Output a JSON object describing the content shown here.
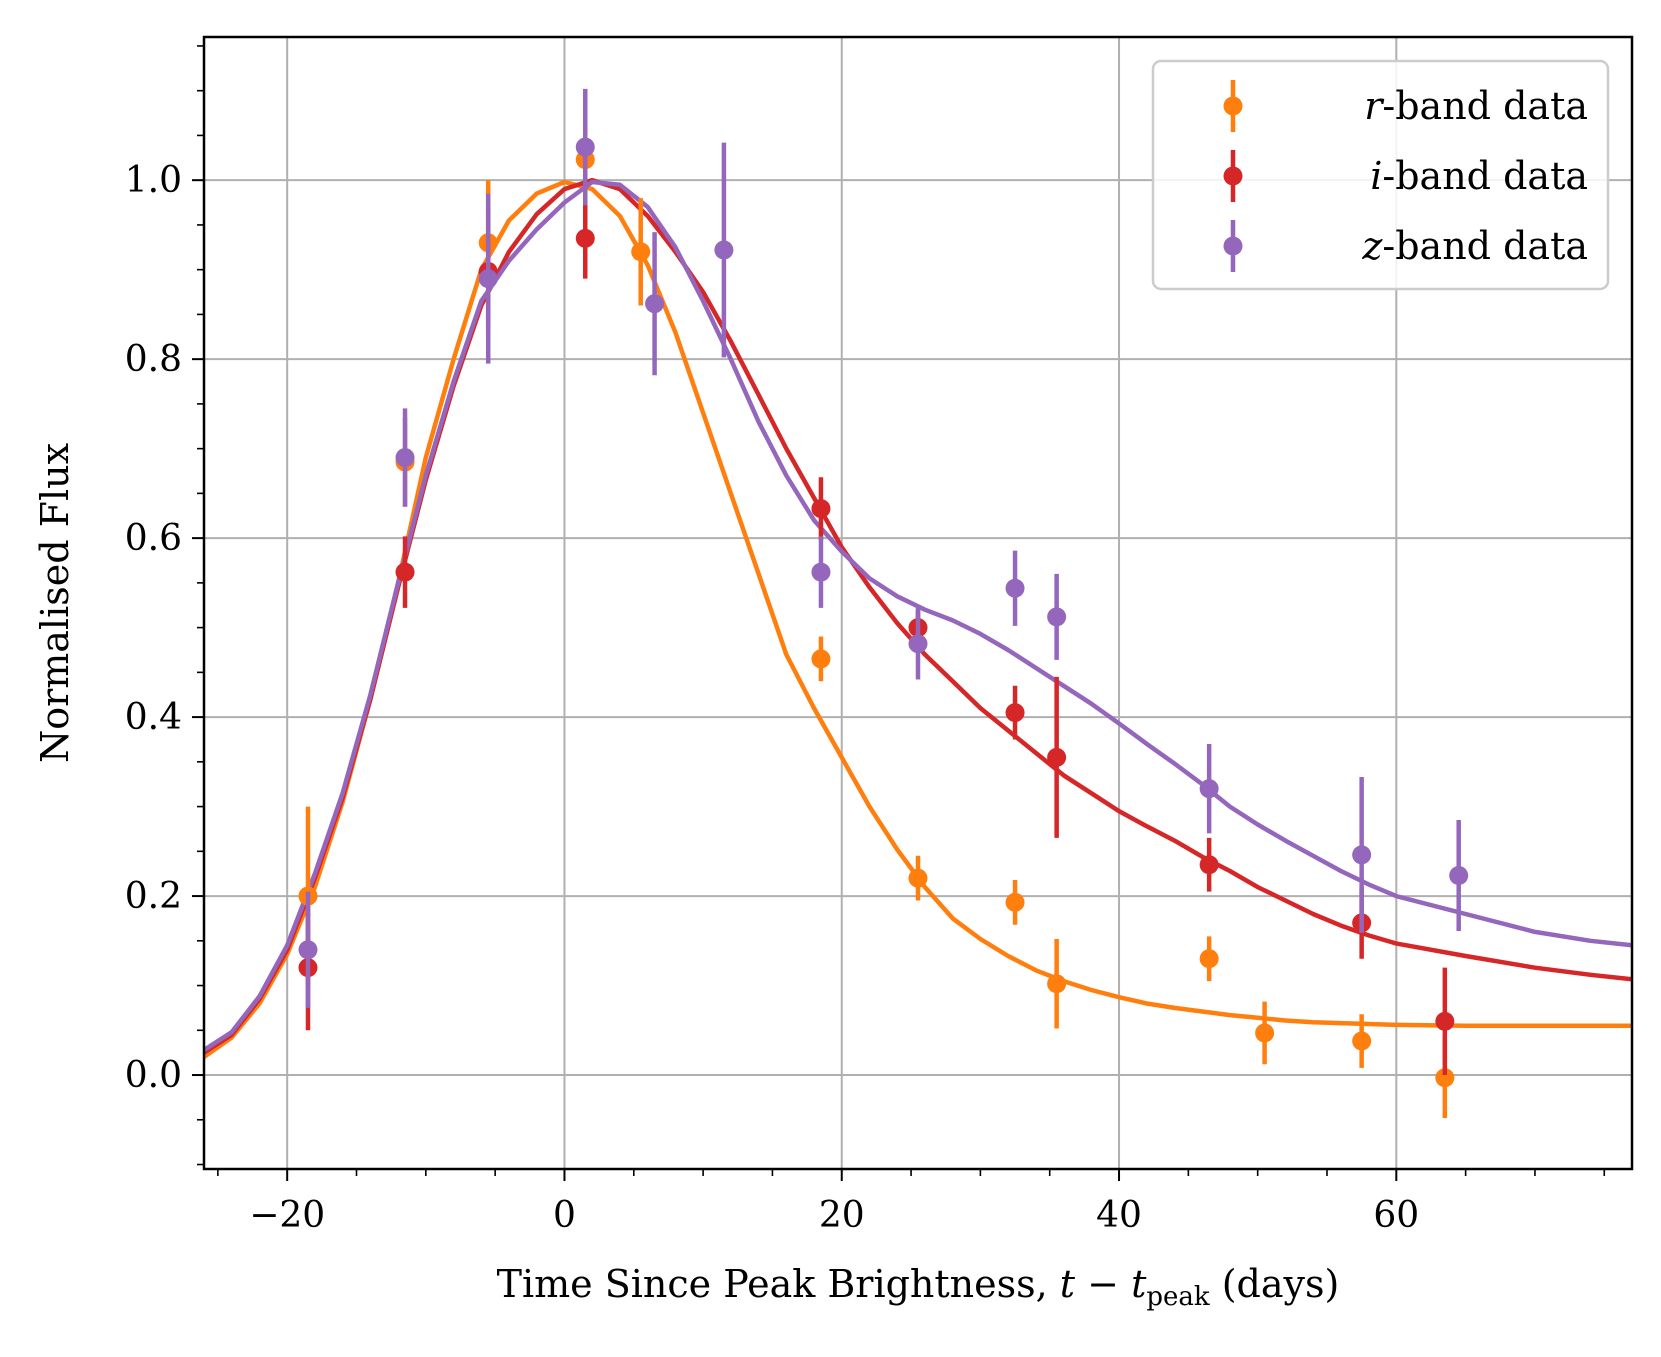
{
  "chart_data": {
    "type": "line",
    "title": "",
    "xlabel": {
      "prefix": "Time Since Peak Brightness, ",
      "var": "t",
      "minus": " − ",
      "var2": "t",
      "sub": "peak",
      "suffix": " (days)"
    },
    "ylabel": "Normalised Flux",
    "xlim": [
      -26,
      77
    ],
    "ylim": [
      -0.105,
      1.16
    ],
    "xticks": [
      -20,
      0,
      20,
      40,
      60
    ],
    "xtick_labels": [
      "−20",
      "0",
      "20",
      "40",
      "60"
    ],
    "yticks": [
      0.0,
      0.2,
      0.4,
      0.6,
      0.8,
      1.0
    ],
    "ytick_labels": [
      "0.0",
      "0.2",
      "0.4",
      "0.6",
      "0.8",
      "1.0"
    ],
    "x_minor_step": 5,
    "y_minor_step": 0.05,
    "grid": true,
    "legend_position": "top-right",
    "series": [
      {
        "name": "r-band data",
        "legend": {
          "italic": "r",
          "rest": "-band data"
        },
        "color": "#ff7f0e",
        "points": [
          {
            "x": -18.5,
            "y": 0.2,
            "err": 0.1
          },
          {
            "x": -11.5,
            "y": 0.685,
            "err": 0.05
          },
          {
            "x": -5.5,
            "y": 0.93,
            "err": 0.07
          },
          {
            "x": 1.5,
            "y": 1.023,
            "err": 0.04
          },
          {
            "x": 5.5,
            "y": 0.92,
            "err": 0.06
          },
          {
            "x": 18.5,
            "y": 0.465,
            "err": 0.025
          },
          {
            "x": 25.5,
            "y": 0.22,
            "err": 0.025
          },
          {
            "x": 32.5,
            "y": 0.193,
            "err": 0.025
          },
          {
            "x": 35.5,
            "y": 0.102,
            "err": 0.05
          },
          {
            "x": 46.5,
            "y": 0.13,
            "err": 0.025
          },
          {
            "x": 50.5,
            "y": 0.047,
            "err": 0.035
          },
          {
            "x": 57.5,
            "y": 0.038,
            "err": 0.03
          },
          {
            "x": 63.5,
            "y": -0.003,
            "err": 0.045
          }
        ],
        "model": [
          [
            -26,
            0.02
          ],
          [
            -24,
            0.042
          ],
          [
            -22,
            0.08
          ],
          [
            -20,
            0.135
          ],
          [
            -18,
            0.21
          ],
          [
            -16,
            0.305
          ],
          [
            -14,
            0.42
          ],
          [
            -12,
            0.55
          ],
          [
            -10,
            0.69
          ],
          [
            -8,
            0.8
          ],
          [
            -6,
            0.9
          ],
          [
            -4,
            0.955
          ],
          [
            -2,
            0.985
          ],
          [
            0,
            0.998
          ],
          [
            2,
            0.99
          ],
          [
            4,
            0.96
          ],
          [
            6,
            0.905
          ],
          [
            8,
            0.83
          ],
          [
            10,
            0.74
          ],
          [
            12,
            0.65
          ],
          [
            14,
            0.56
          ],
          [
            16,
            0.47
          ],
          [
            18,
            0.41
          ],
          [
            20,
            0.355
          ],
          [
            22,
            0.3
          ],
          [
            24,
            0.252
          ],
          [
            26,
            0.21
          ],
          [
            28,
            0.175
          ],
          [
            30,
            0.152
          ],
          [
            32,
            0.133
          ],
          [
            34,
            0.117
          ],
          [
            36,
            0.105
          ],
          [
            38,
            0.095
          ],
          [
            40,
            0.087
          ],
          [
            42,
            0.08
          ],
          [
            44,
            0.075
          ],
          [
            46,
            0.071
          ],
          [
            48,
            0.067
          ],
          [
            50,
            0.064
          ],
          [
            52,
            0.061
          ],
          [
            54,
            0.059
          ],
          [
            56,
            0.058
          ],
          [
            58,
            0.057
          ],
          [
            60,
            0.056
          ],
          [
            65,
            0.055
          ],
          [
            70,
            0.055
          ],
          [
            77,
            0.055
          ]
        ]
      },
      {
        "name": "i-band data",
        "legend": {
          "italic": "i",
          "rest": "-band data"
        },
        "color": "#d62728",
        "points": [
          {
            "x": -18.5,
            "y": 0.12,
            "err": 0.07
          },
          {
            "x": -11.5,
            "y": 0.562,
            "err": 0.04
          },
          {
            "x": -5.5,
            "y": 0.898,
            "err": 0.07
          },
          {
            "x": 1.5,
            "y": 0.935,
            "err": 0.045
          },
          {
            "x": 18.5,
            "y": 0.633,
            "err": 0.035
          },
          {
            "x": 25.5,
            "y": 0.5,
            "err": 0.02
          },
          {
            "x": 32.5,
            "y": 0.405,
            "err": 0.03
          },
          {
            "x": 35.5,
            "y": 0.355,
            "err": 0.09
          },
          {
            "x": 46.5,
            "y": 0.235,
            "err": 0.03
          },
          {
            "x": 57.5,
            "y": 0.17,
            "err": 0.04
          },
          {
            "x": 63.5,
            "y": 0.06,
            "err": 0.06
          }
        ],
        "model": [
          [
            -26,
            0.025
          ],
          [
            -24,
            0.045
          ],
          [
            -22,
            0.085
          ],
          [
            -20,
            0.14
          ],
          [
            -18,
            0.22
          ],
          [
            -16,
            0.31
          ],
          [
            -14,
            0.42
          ],
          [
            -12,
            0.545
          ],
          [
            -10,
            0.665
          ],
          [
            -8,
            0.77
          ],
          [
            -6,
            0.86
          ],
          [
            -4,
            0.92
          ],
          [
            -2,
            0.962
          ],
          [
            0,
            0.99
          ],
          [
            2,
            1.0
          ],
          [
            4,
            0.99
          ],
          [
            6,
            0.96
          ],
          [
            8,
            0.92
          ],
          [
            10,
            0.875
          ],
          [
            12,
            0.82
          ],
          [
            14,
            0.76
          ],
          [
            16,
            0.7
          ],
          [
            18,
            0.645
          ],
          [
            20,
            0.59
          ],
          [
            22,
            0.545
          ],
          [
            24,
            0.505
          ],
          [
            26,
            0.47
          ],
          [
            28,
            0.44
          ],
          [
            30,
            0.41
          ],
          [
            32,
            0.385
          ],
          [
            34,
            0.36
          ],
          [
            36,
            0.335
          ],
          [
            38,
            0.315
          ],
          [
            40,
            0.295
          ],
          [
            42,
            0.278
          ],
          [
            44,
            0.262
          ],
          [
            46,
            0.244
          ],
          [
            48,
            0.228
          ],
          [
            50,
            0.21
          ],
          [
            52,
            0.195
          ],
          [
            54,
            0.18
          ],
          [
            56,
            0.167
          ],
          [
            58,
            0.156
          ],
          [
            60,
            0.147
          ],
          [
            65,
            0.133
          ],
          [
            70,
            0.12
          ],
          [
            74,
            0.112
          ],
          [
            77,
            0.107
          ]
        ]
      },
      {
        "name": "z-band data",
        "legend": {
          "italic": "z",
          "rest": "-band data"
        },
        "color": "#9467bd",
        "points": [
          {
            "x": -18.5,
            "y": 0.14,
            "err": 0.065
          },
          {
            "x": -11.5,
            "y": 0.69,
            "err": 0.055
          },
          {
            "x": -5.5,
            "y": 0.89,
            "err": 0.095
          },
          {
            "x": 1.5,
            "y": 1.037,
            "err": 0.065
          },
          {
            "x": 6.5,
            "y": 0.862,
            "err": 0.08
          },
          {
            "x": 11.5,
            "y": 0.922,
            "err": 0.12
          },
          {
            "x": 18.5,
            "y": 0.562,
            "err": 0.04
          },
          {
            "x": 25.5,
            "y": 0.482,
            "err": 0.04
          },
          {
            "x": 32.5,
            "y": 0.544,
            "err": 0.042
          },
          {
            "x": 35.5,
            "y": 0.512,
            "err": 0.048
          },
          {
            "x": 46.5,
            "y": 0.32,
            "err": 0.05
          },
          {
            "x": 57.5,
            "y": 0.246,
            "err": 0.087
          },
          {
            "x": 64.5,
            "y": 0.223,
            "err": 0.062
          }
        ],
        "model": [
          [
            -26,
            0.028
          ],
          [
            -24,
            0.048
          ],
          [
            -22,
            0.088
          ],
          [
            -20,
            0.145
          ],
          [
            -18,
            0.225
          ],
          [
            -16,
            0.315
          ],
          [
            -14,
            0.425
          ],
          [
            -12,
            0.55
          ],
          [
            -10,
            0.67
          ],
          [
            -8,
            0.775
          ],
          [
            -6,
            0.865
          ],
          [
            -4,
            0.91
          ],
          [
            -2,
            0.945
          ],
          [
            0,
            0.975
          ],
          [
            2,
            0.998
          ],
          [
            4,
            0.995
          ],
          [
            6,
            0.97
          ],
          [
            8,
            0.925
          ],
          [
            10,
            0.865
          ],
          [
            12,
            0.8
          ],
          [
            14,
            0.73
          ],
          [
            16,
            0.67
          ],
          [
            18,
            0.62
          ],
          [
            20,
            0.585
          ],
          [
            22,
            0.555
          ],
          [
            24,
            0.535
          ],
          [
            26,
            0.52
          ],
          [
            28,
            0.508
          ],
          [
            30,
            0.493
          ],
          [
            32,
            0.475
          ],
          [
            34,
            0.455
          ],
          [
            36,
            0.435
          ],
          [
            38,
            0.415
          ],
          [
            40,
            0.393
          ],
          [
            42,
            0.37
          ],
          [
            44,
            0.348
          ],
          [
            46,
            0.325
          ],
          [
            48,
            0.3
          ],
          [
            50,
            0.28
          ],
          [
            52,
            0.262
          ],
          [
            54,
            0.245
          ],
          [
            56,
            0.228
          ],
          [
            58,
            0.213
          ],
          [
            60,
            0.2
          ],
          [
            65,
            0.18
          ],
          [
            70,
            0.16
          ],
          [
            74,
            0.15
          ],
          [
            77,
            0.145
          ]
        ]
      }
    ]
  }
}
